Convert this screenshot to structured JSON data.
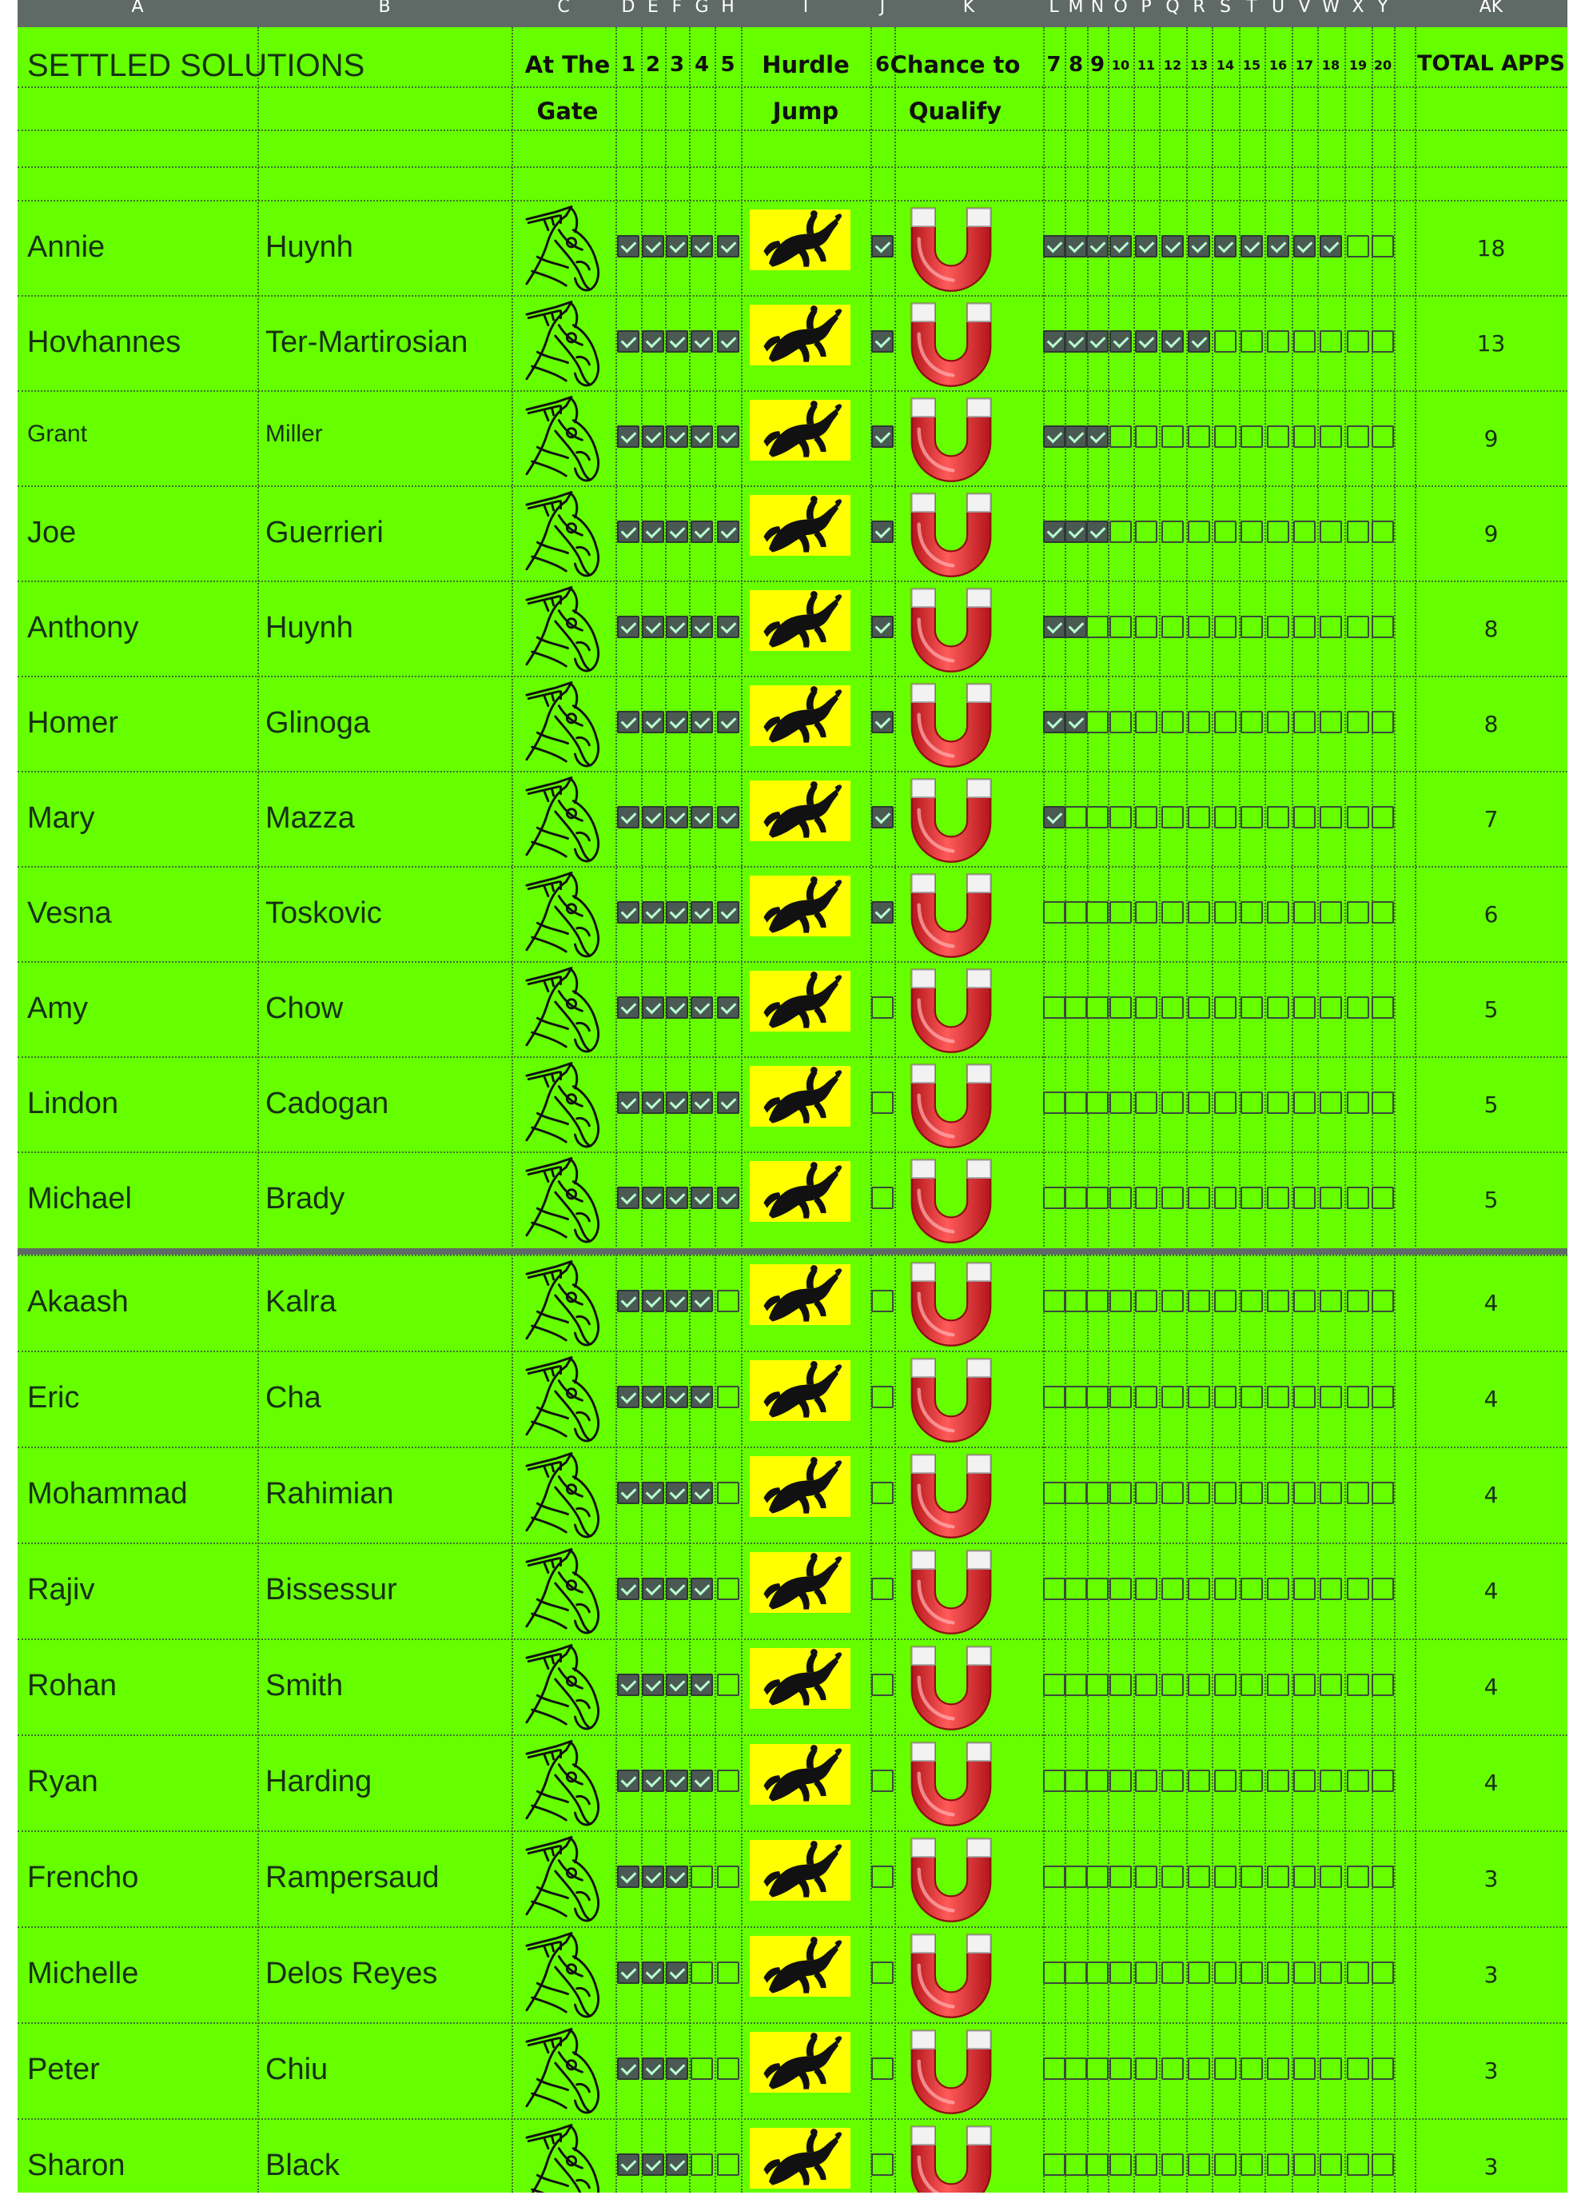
{
  "column_letters": [
    "A",
    "B",
    "C",
    "D",
    "E",
    "F",
    "G",
    "H",
    "I",
    "J",
    "K",
    "L",
    "M",
    "N",
    "O",
    "P",
    "Q",
    "R",
    "S",
    "T",
    "U",
    "V",
    "W",
    "X",
    "Y",
    "AK"
  ],
  "header": {
    "title": "SETTLED SOLUTIONS",
    "at_the_gate_line1": "At The",
    "at_the_gate_line2": "Gate",
    "hurdle_jump_line1": "Hurdle",
    "hurdle_jump_line2": "Jump",
    "chance_to_qualify_line1": "Chance to",
    "chance_to_qualify_line2": "Qualify",
    "total_apps": "TOTAL APPS",
    "step_numbers": [
      "1",
      "2",
      "3",
      "4",
      "5",
      "6",
      "7",
      "8",
      "9",
      "10",
      "11",
      "12",
      "13",
      "14",
      "15",
      "16",
      "17",
      "18",
      "19",
      "20"
    ]
  },
  "icons": {
    "gate": "horse-head-icon",
    "hurdle": "horse-jump-icon",
    "qualify": "magnet-icon"
  },
  "colors": {
    "sheet_background": "#66ff00",
    "hurdle_background": "#ffff00",
    "checked_box": "#4a5a53",
    "magnet_red": "#e0252a"
  },
  "rows": [
    {
      "first": "Annie",
      "last": "Huynh",
      "total": "18"
    },
    {
      "first": "Hovhannes",
      "last": "Ter-Martirosian",
      "total": "13"
    },
    {
      "first": "Grant",
      "last": "Miller",
      "total": "9"
    },
    {
      "first": "Joe",
      "last": "Guerrieri",
      "total": "9"
    },
    {
      "first": "Anthony",
      "last": "Huynh",
      "total": "8"
    },
    {
      "first": "Homer",
      "last": "Glinoga",
      "total": "8"
    },
    {
      "first": "Mary",
      "last": "Mazza",
      "total": "7"
    },
    {
      "first": "Vesna",
      "last": "Toskovic",
      "total": "6"
    },
    {
      "first": "Amy",
      "last": "Chow",
      "total": "5"
    },
    {
      "first": "Lindon",
      "last": "Cadogan",
      "total": "5"
    },
    {
      "first": "Michael",
      "last": "Brady",
      "total": "5"
    },
    {
      "first": "Akaash",
      "last": "Kalra",
      "total": "4"
    },
    {
      "first": "Eric",
      "last": "Cha",
      "total": "4"
    },
    {
      "first": "Mohammad",
      "last": "Rahimian",
      "total": "4"
    },
    {
      "first": "Rajiv",
      "last": "Bissessur",
      "total": "4"
    },
    {
      "first": "Rohan",
      "last": "Smith",
      "total": "4"
    },
    {
      "first": "Ryan",
      "last": "Harding",
      "total": "4"
    },
    {
      "first": "Frencho",
      "last": "Rampersaud",
      "total": "3"
    },
    {
      "first": "Michelle",
      "last": "Delos Reyes",
      "total": "3"
    },
    {
      "first": "Peter",
      "last": "Chiu",
      "total": "3"
    },
    {
      "first": "Sharon",
      "last": "Black",
      "total": "3"
    }
  ]
}
